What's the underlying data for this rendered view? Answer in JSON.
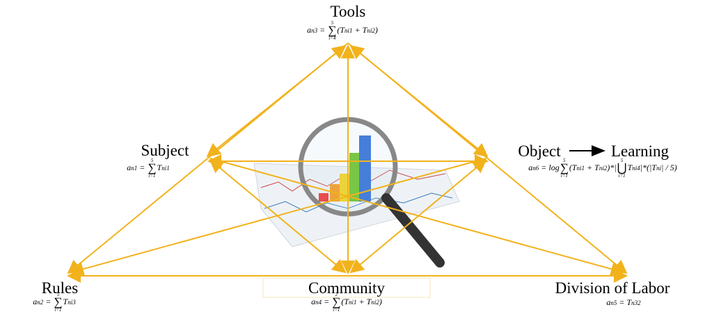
{
  "nodes": [
    {
      "label": "Tools",
      "formula": [
        {
          "text": "a"
        },
        {
          "sub": "n3"
        },
        {
          "text": " = "
        },
        {
          "op": "∑",
          "upper": "5",
          "lower": "i=4"
        },
        {
          "text": "(T"
        },
        {
          "sub": "ni1"
        },
        {
          "text": " + T"
        },
        {
          "sub": "ni2"
        },
        {
          "text": ")"
        }
      ]
    },
    {
      "label": "Subject",
      "formula": [
        {
          "text": "a"
        },
        {
          "sub": "n1"
        },
        {
          "text": " = "
        },
        {
          "op": "∑",
          "upper": "5",
          "lower": "i=1"
        },
        {
          "text": "T"
        },
        {
          "sub": "ni1"
        }
      ]
    },
    {
      "label": "Object",
      "outcome": "Learning",
      "formula": [
        {
          "text": "a"
        },
        {
          "sub": "n6"
        },
        {
          "text": " = log"
        },
        {
          "op": "∑",
          "upper": "5",
          "lower": "i=1"
        },
        {
          "text": "(T"
        },
        {
          "sub": "ni1"
        },
        {
          "text": " + T"
        },
        {
          "sub": "ni2"
        },
        {
          "text": ")*|"
        },
        {
          "op": "⋃",
          "upper": "5",
          "lower": "i=1"
        },
        {
          "text": "T"
        },
        {
          "sub": "ni4"
        },
        {
          "text": "|*(|T"
        },
        {
          "sub": "ni"
        },
        {
          "text": "| / 5)"
        }
      ]
    },
    {
      "label": "Rules",
      "formula": [
        {
          "text": "a"
        },
        {
          "sub": "n2"
        },
        {
          "text": " = "
        },
        {
          "op": "∑",
          "upper": "5",
          "lower": "i=1"
        },
        {
          "text": "T"
        },
        {
          "sub": "ni3"
        }
      ]
    },
    {
      "label": "Community",
      "formula": [
        {
          "text": "a"
        },
        {
          "sub": "n4"
        },
        {
          "text": " = "
        },
        {
          "op": "∑",
          "upper": "2",
          "lower": "i=1"
        },
        {
          "text": "(T"
        },
        {
          "sub": "ni1"
        },
        {
          "text": " + T"
        },
        {
          "sub": "ni2"
        },
        {
          "text": ")"
        }
      ]
    },
    {
      "label": "Division of Labor",
      "formula": [
        {
          "text": "a"
        },
        {
          "sub": "n5"
        },
        {
          "text": " = T"
        },
        {
          "sub": "n32"
        }
      ]
    }
  ]
}
